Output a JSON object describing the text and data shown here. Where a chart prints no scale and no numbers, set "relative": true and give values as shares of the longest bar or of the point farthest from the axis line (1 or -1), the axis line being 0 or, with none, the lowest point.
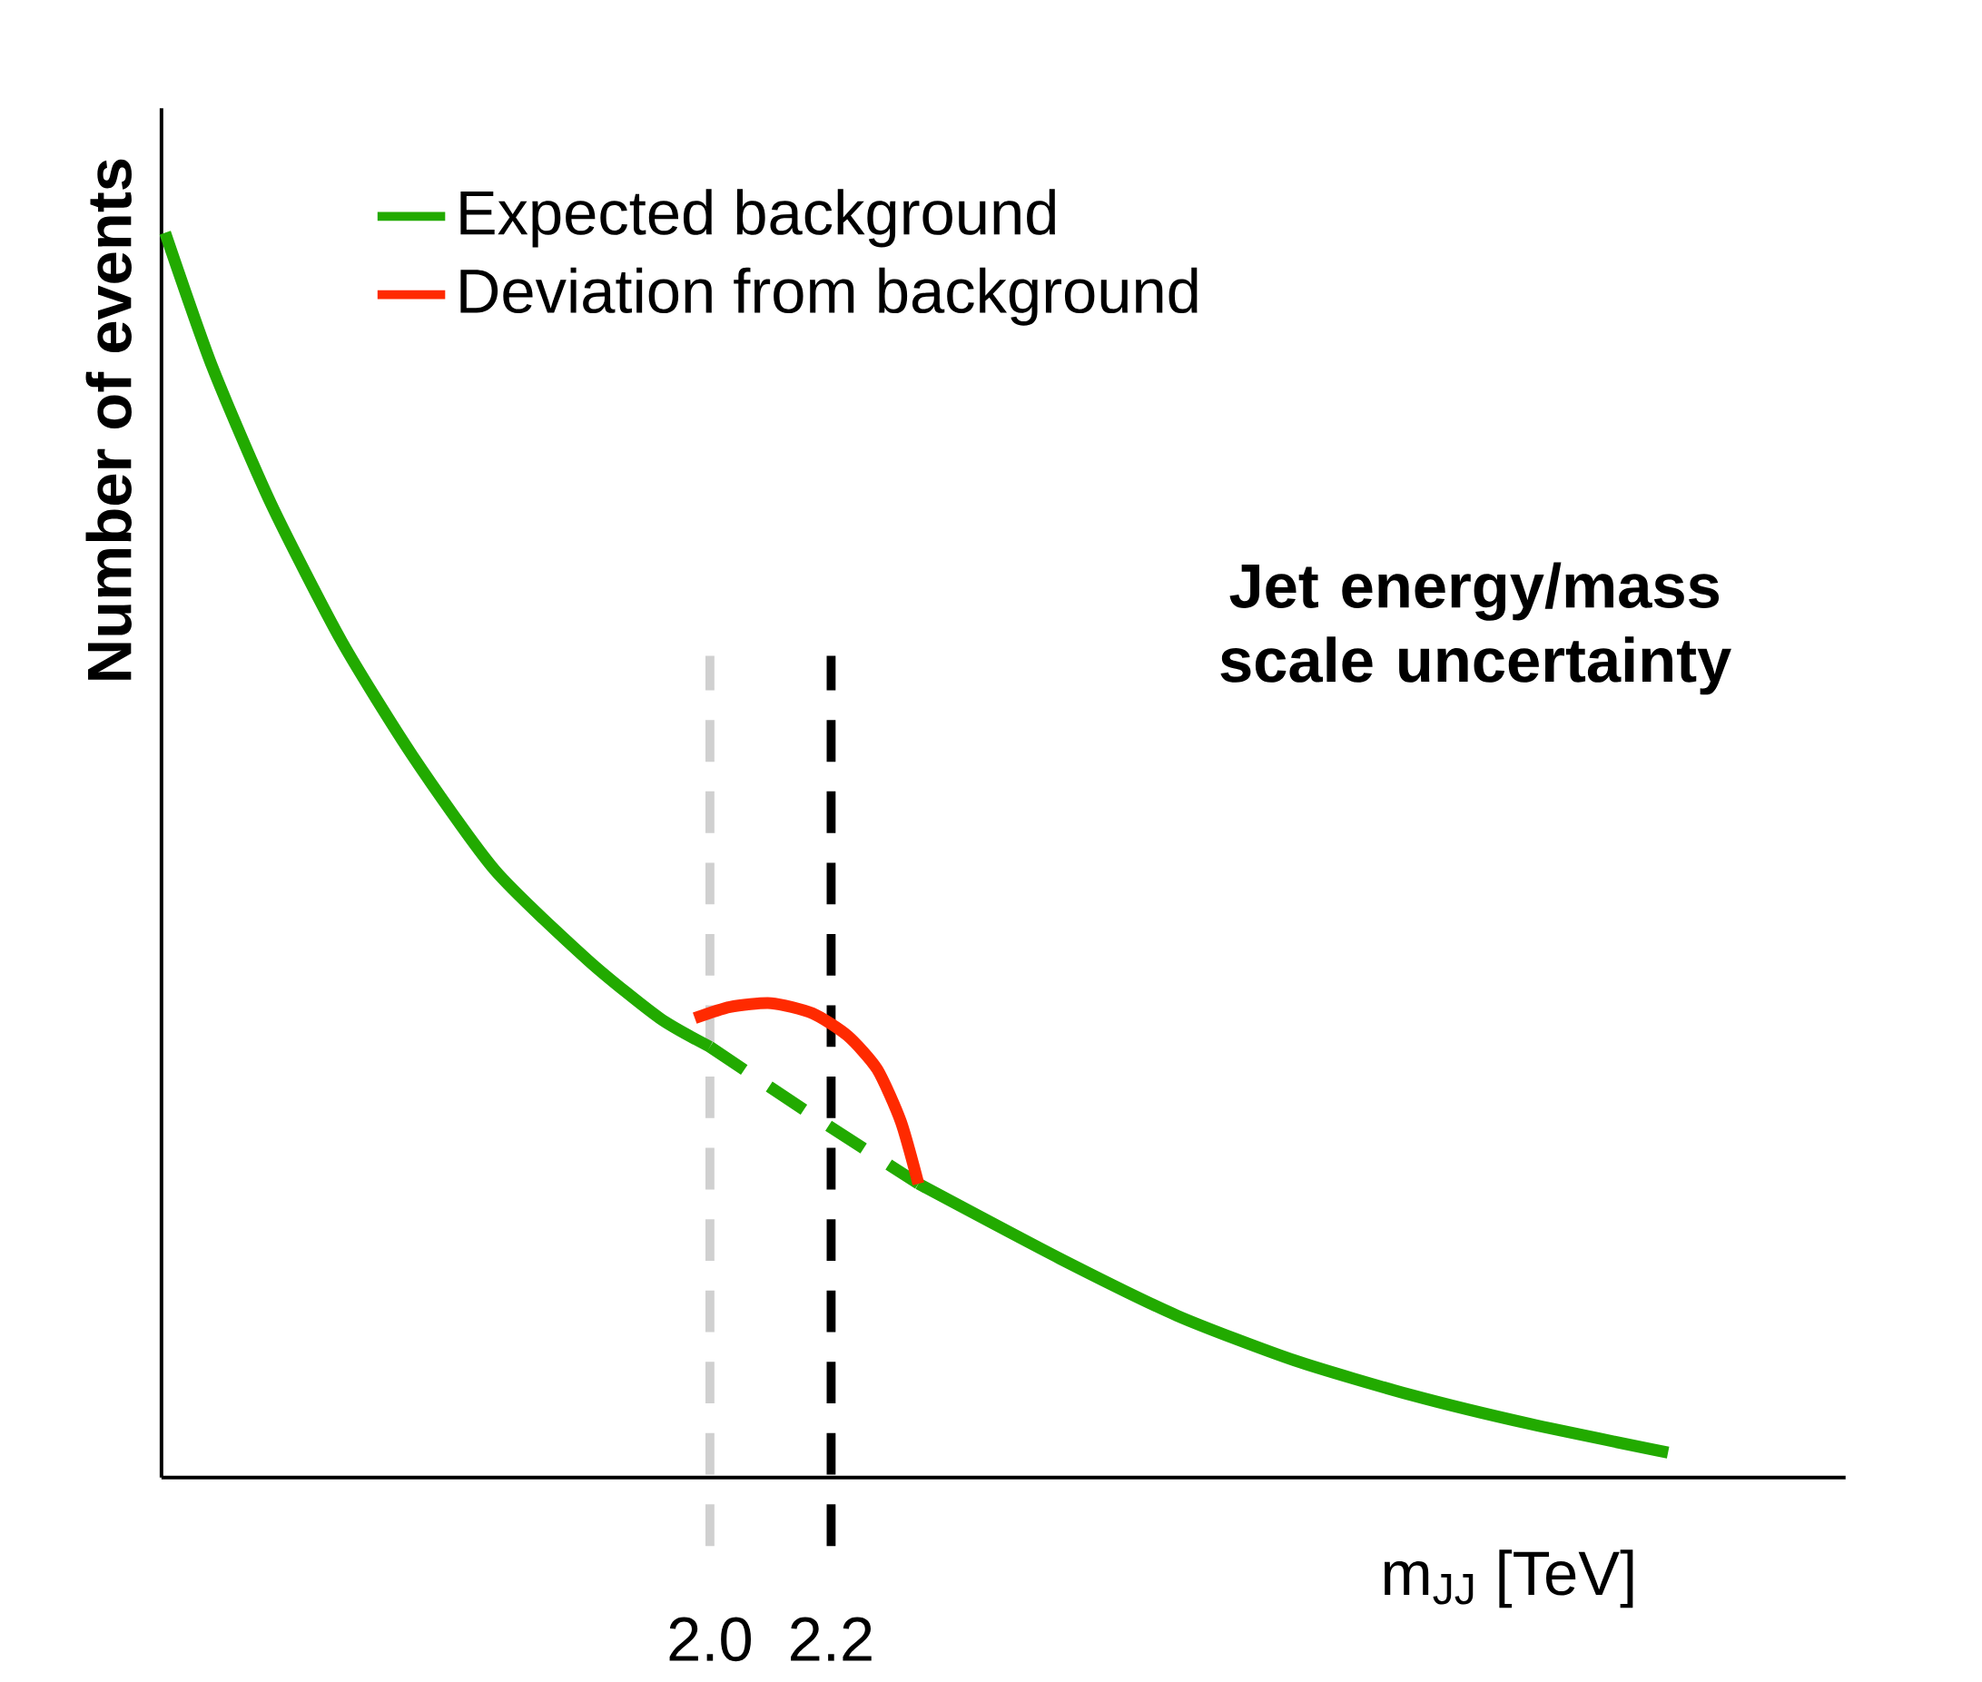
{
  "chart_data": {
    "type": "line",
    "relative": true,
    "xlabel": "m$_{JJ}$ [TeV]",
    "ylabel": "Number of events",
    "annotations": [
      "Jet energy/mass scale uncertainty"
    ],
    "xlim": [
      1.095,
      3.874
    ],
    "xticks": [
      {
        "value": 2.0,
        "label": "2.0"
      },
      {
        "value": 2.2,
        "label": "2.2"
      }
    ],
    "tick_labels": "x",
    "legend": "top left",
    "marker": "none",
    "ref_lines": [
      {
        "axis": "x",
        "value": 2.0,
        "color": "#d0d0d0",
        "line_style": "dashed"
      },
      {
        "axis": "x",
        "value": 2.2,
        "color": "#000000",
        "line_style": "dashed"
      }
    ],
    "series": [
      {
        "name": "Expected background",
        "color": "#22aa00",
        "line_style": "solid",
        "x": [
          1.101,
          1.179,
          1.276,
          1.392,
          1.509,
          1.645,
          1.8,
          1.917,
          2.0
        ],
        "values": [
          1.0,
          0.892,
          0.782,
          0.672,
          0.58,
          0.488,
          0.415,
          0.369,
          0.346
        ]
      },
      {
        "color": "#22aa00",
        "line_style": "dashed",
        "x": [
          2.0,
          2.169,
          2.344
        ],
        "values": [
          0.346,
          0.291,
          0.236
        ]
      },
      {
        "color": "#22aa00",
        "line_style": "solid",
        "x": [
          2.344,
          2.577,
          2.771,
          2.965,
          3.159,
          3.353,
          3.581
        ],
        "values": [
          0.236,
          0.176,
          0.13,
          0.094,
          0.066,
          0.043,
          0.02
        ]
      },
      {
        "name": "Deviation from background",
        "color": "#ff2a00",
        "line_style": "solid",
        "x": [
          1.975,
          2.033,
          2.101,
          2.169,
          2.227,
          2.276,
          2.315,
          2.344
        ],
        "values": [
          0.369,
          0.378,
          0.381,
          0.373,
          0.355,
          0.328,
          0.286,
          0.236
        ]
      }
    ]
  }
}
